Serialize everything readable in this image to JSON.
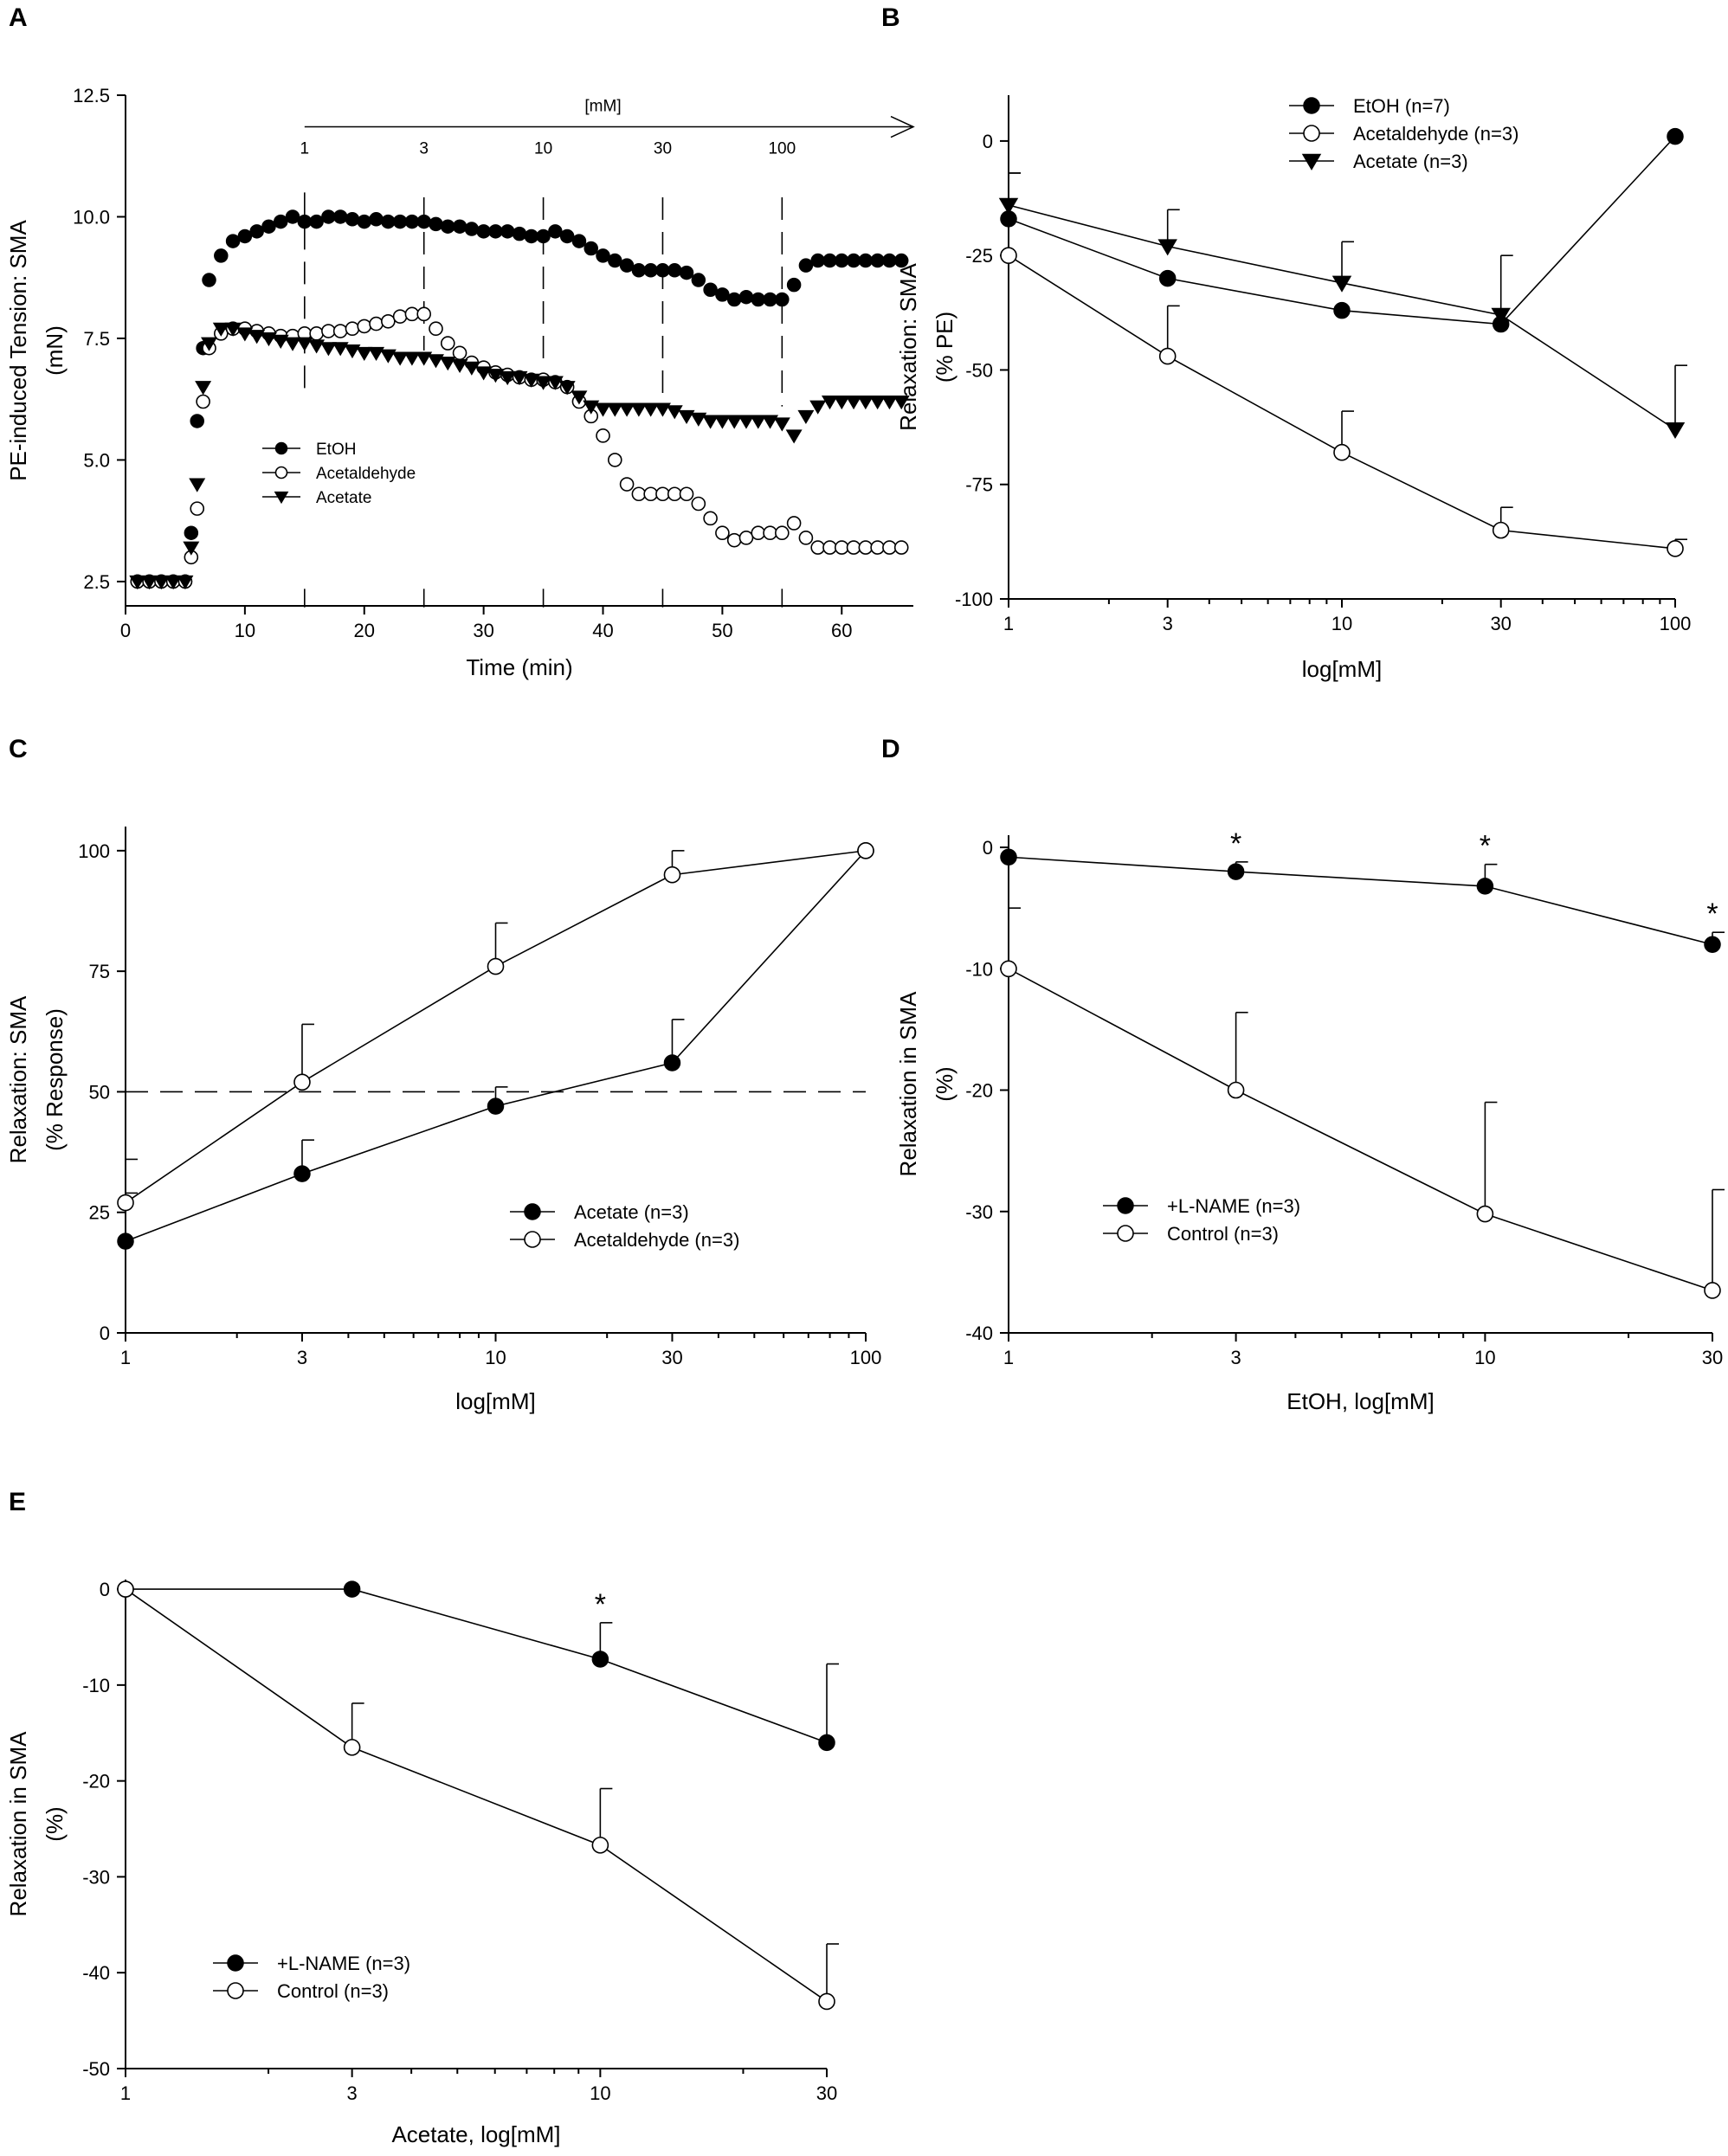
{
  "chart_data": [
    {
      "panel": "A",
      "type": "scatter",
      "xlabel": "Time (min)",
      "ylabel": [
        "PE-induced Tension: SMA",
        "(mN)"
      ],
      "xlim": [
        0,
        66
      ],
      "ylim": [
        2,
        12.5
      ],
      "xticks": [
        0,
        10,
        20,
        30,
        40,
        50,
        60
      ],
      "yticks": [
        2.5,
        5.0,
        7.5,
        10.0,
        12.5
      ],
      "ytick_labels": [
        "2.5",
        "5.0",
        "7.5",
        "10.0",
        "12.5"
      ],
      "arrow_label": "[mM]",
      "conc_markers": [
        {
          "label": "1",
          "x": 15
        },
        {
          "label": "3",
          "x": 25
        },
        {
          "label": "10",
          "x": 35
        },
        {
          "label": "30",
          "x": 45
        },
        {
          "label": "100",
          "x": 55
        }
      ],
      "series": [
        {
          "name": "EtOH",
          "marker": "filled-circle",
          "x": [
            1,
            2,
            3,
            4,
            5,
            5.5,
            6,
            6.5,
            7,
            8,
            9,
            10,
            11,
            12,
            13,
            14,
            15,
            16,
            17,
            18,
            19,
            20,
            21,
            22,
            23,
            24,
            25,
            26,
            27,
            28,
            29,
            30,
            31,
            32,
            33,
            34,
            35,
            36,
            37,
            38,
            39,
            40,
            41,
            42,
            43,
            44,
            45,
            46,
            47,
            48,
            49,
            50,
            51,
            52,
            53,
            54,
            55,
            56,
            57,
            58,
            59,
            60,
            61,
            62,
            63,
            64,
            65
          ],
          "y": [
            2.5,
            2.5,
            2.5,
            2.5,
            2.5,
            3.5,
            5.8,
            7.3,
            8.7,
            9.2,
            9.5,
            9.6,
            9.7,
            9.8,
            9.9,
            10.0,
            9.9,
            9.9,
            10.0,
            10.0,
            9.95,
            9.9,
            9.95,
            9.9,
            9.9,
            9.9,
            9.9,
            9.85,
            9.8,
            9.8,
            9.75,
            9.7,
            9.7,
            9.7,
            9.65,
            9.6,
            9.6,
            9.7,
            9.6,
            9.5,
            9.35,
            9.2,
            9.1,
            9.0,
            8.9,
            8.9,
            8.9,
            8.9,
            8.85,
            8.7,
            8.5,
            8.4,
            8.3,
            8.35,
            8.3,
            8.3,
            8.3,
            8.6,
            9.0,
            9.1,
            9.1,
            9.1,
            9.1,
            9.1,
            9.1,
            9.1,
            9.1
          ]
        },
        {
          "name": "Acetaldehyde",
          "marker": "open-circle",
          "x": [
            1,
            2,
            3,
            4,
            5,
            5.5,
            6,
            6.5,
            7,
            8,
            9,
            10,
            11,
            12,
            13,
            14,
            15,
            16,
            17,
            18,
            19,
            20,
            21,
            22,
            23,
            24,
            25,
            26,
            27,
            28,
            29,
            30,
            31,
            32,
            33,
            34,
            35,
            36,
            37,
            38,
            39,
            40,
            41,
            42,
            43,
            44,
            45,
            46,
            47,
            48,
            49,
            50,
            51,
            52,
            53,
            54,
            55,
            56,
            57,
            58,
            59,
            60,
            61,
            62,
            63,
            64,
            65
          ],
          "y": [
            2.5,
            2.5,
            2.5,
            2.5,
            2.5,
            3.0,
            4.0,
            6.2,
            7.3,
            7.6,
            7.7,
            7.7,
            7.65,
            7.6,
            7.55,
            7.55,
            7.6,
            7.6,
            7.65,
            7.65,
            7.7,
            7.75,
            7.8,
            7.85,
            7.95,
            8.0,
            8.0,
            7.7,
            7.4,
            7.2,
            7.0,
            6.9,
            6.8,
            6.75,
            6.7,
            6.65,
            6.65,
            6.6,
            6.5,
            6.2,
            5.9,
            5.5,
            5.0,
            4.5,
            4.3,
            4.3,
            4.3,
            4.3,
            4.3,
            4.1,
            3.8,
            3.5,
            3.35,
            3.4,
            3.5,
            3.5,
            3.5,
            3.7,
            3.4,
            3.2,
            3.2,
            3.2,
            3.2,
            3.2,
            3.2,
            3.2,
            3.2
          ]
        },
        {
          "name": "Acetate",
          "marker": "filled-triangle-down",
          "x": [
            1,
            2,
            3,
            4,
            5,
            5.5,
            6,
            6.5,
            7,
            8,
            9,
            10,
            11,
            12,
            13,
            14,
            15,
            16,
            17,
            18,
            19,
            20,
            21,
            22,
            23,
            24,
            25,
            26,
            27,
            28,
            29,
            30,
            31,
            32,
            33,
            34,
            35,
            36,
            37,
            38,
            39,
            40,
            41,
            42,
            43,
            44,
            45,
            46,
            47,
            48,
            49,
            50,
            51,
            52,
            53,
            54,
            55,
            56,
            57,
            58,
            59,
            60,
            61,
            62,
            63,
            64,
            65
          ],
          "y": [
            2.5,
            2.5,
            2.5,
            2.5,
            2.5,
            3.2,
            4.5,
            6.5,
            7.4,
            7.7,
            7.7,
            7.6,
            7.55,
            7.5,
            7.45,
            7.4,
            7.4,
            7.35,
            7.3,
            7.3,
            7.25,
            7.2,
            7.2,
            7.15,
            7.1,
            7.1,
            7.1,
            7.05,
            7.0,
            6.95,
            6.9,
            6.8,
            6.75,
            6.7,
            6.7,
            6.65,
            6.6,
            6.6,
            6.5,
            6.3,
            6.1,
            6.05,
            6.05,
            6.05,
            6.05,
            6.05,
            6.05,
            6.0,
            5.9,
            5.85,
            5.8,
            5.8,
            5.8,
            5.8,
            5.8,
            5.8,
            5.75,
            5.5,
            5.9,
            6.1,
            6.2,
            6.2,
            6.2,
            6.2,
            6.2,
            6.2,
            6.2
          ]
        }
      ]
    },
    {
      "panel": "B",
      "type": "line",
      "xscale": "log",
      "xlabel": "log[mM]",
      "ylabel": [
        "Relaxation: SMA",
        "(% PE)"
      ],
      "xlim": [
        1,
        100
      ],
      "ylim": [
        -100,
        10
      ],
      "xticks": [
        1,
        3,
        10,
        30,
        100
      ],
      "yticks": [
        0,
        -25,
        -50,
        -75,
        -100
      ],
      "x": [
        1,
        3,
        10,
        30,
        100
      ],
      "series": [
        {
          "name": "EtOH (n=7)",
          "marker": "filled-circle",
          "values": [
            -17,
            -30,
            -37,
            -40,
            1
          ],
          "error": [
            10,
            0,
            0,
            0,
            0
          ]
        },
        {
          "name": "Acetaldehyde (n=3)",
          "marker": "open-circle",
          "values": [
            -25,
            -47,
            -68,
            -85,
            -89
          ],
          "error": [
            0,
            11,
            9,
            5,
            2
          ]
        },
        {
          "name": "Acetate (n=3)",
          "marker": "filled-triangle-down",
          "values": [
            -14,
            -23,
            -31,
            -38,
            -63
          ],
          "error": [
            7,
            8,
            9,
            13,
            14
          ]
        }
      ]
    },
    {
      "panel": "C",
      "type": "line",
      "xscale": "log",
      "xlabel": "log[mM]",
      "ylabel": [
        "Relaxation: SMA",
        "(% Response)"
      ],
      "xlim": [
        1,
        100
      ],
      "ylim": [
        0,
        105
      ],
      "xticks": [
        1,
        3,
        10,
        30,
        100
      ],
      "yticks": [
        0,
        25,
        50,
        75,
        100
      ],
      "reference_line": 50,
      "x": [
        1,
        3,
        10,
        30,
        100
      ],
      "series": [
        {
          "name": "Acetate (n=3)",
          "marker": "filled-circle",
          "values": [
            19,
            33,
            47,
            56,
            100
          ],
          "error": [
            17,
            7,
            4,
            9,
            0
          ]
        },
        {
          "name": "Acetaldehyde (n=3)",
          "marker": "open-circle",
          "values": [
            27,
            52,
            76,
            95,
            100
          ],
          "error": [
            2,
            12,
            9,
            5,
            0
          ]
        }
      ]
    },
    {
      "panel": "D",
      "type": "line",
      "xscale": "log",
      "xlabel": "EtOH, log[mM]",
      "ylabel": [
        "Relaxation in SMA",
        "(%)"
      ],
      "xlim": [
        1,
        30
      ],
      "ylim": [
        -40,
        1
      ],
      "xticks": [
        1,
        3,
        10,
        30
      ],
      "yticks": [
        0,
        -10,
        -20,
        -30,
        -40
      ],
      "x": [
        1,
        3,
        10,
        30
      ],
      "significance": [
        {
          "x": 3,
          "label": "*"
        },
        {
          "x": 10,
          "label": "*"
        },
        {
          "x": 30,
          "label": "*"
        }
      ],
      "series": [
        {
          "name": "+L-NAME (n=3)",
          "marker": "filled-circle",
          "values": [
            -0.8,
            -2.0,
            -3.2,
            -8.0
          ],
          "error": [
            0,
            0.8,
            1.8,
            1.0
          ]
        },
        {
          "name": "Control (n=3)",
          "marker": "open-circle",
          "values": [
            -10,
            -20,
            -30.2,
            -36.5
          ],
          "error": [
            5,
            6.4,
            9.2,
            8.3
          ]
        }
      ]
    },
    {
      "panel": "E",
      "type": "line",
      "xscale": "log",
      "xlabel": "Acetate, log[mM]",
      "ylabel": [
        "Relaxation in SMA",
        "(%)"
      ],
      "xlim": [
        1,
        30
      ],
      "ylim": [
        -50,
        1
      ],
      "xticks": [
        1,
        3,
        10,
        30
      ],
      "yticks": [
        0,
        -10,
        -20,
        -30,
        -40,
        -50
      ],
      "x": [
        1,
        3,
        10,
        30
      ],
      "significance": [
        {
          "x": 10,
          "label": "*"
        }
      ],
      "series": [
        {
          "name": "+L-NAME (n=3)",
          "marker": "filled-circle",
          "values": [
            0,
            0,
            -7.3,
            -16
          ],
          "error": [
            0,
            0,
            3.8,
            8.2
          ]
        },
        {
          "name": "Control (n=3)",
          "marker": "open-circle",
          "values": [
            0,
            -16.5,
            -26.7,
            -43
          ],
          "error": [
            0,
            4.6,
            5.9,
            6
          ]
        }
      ]
    }
  ]
}
